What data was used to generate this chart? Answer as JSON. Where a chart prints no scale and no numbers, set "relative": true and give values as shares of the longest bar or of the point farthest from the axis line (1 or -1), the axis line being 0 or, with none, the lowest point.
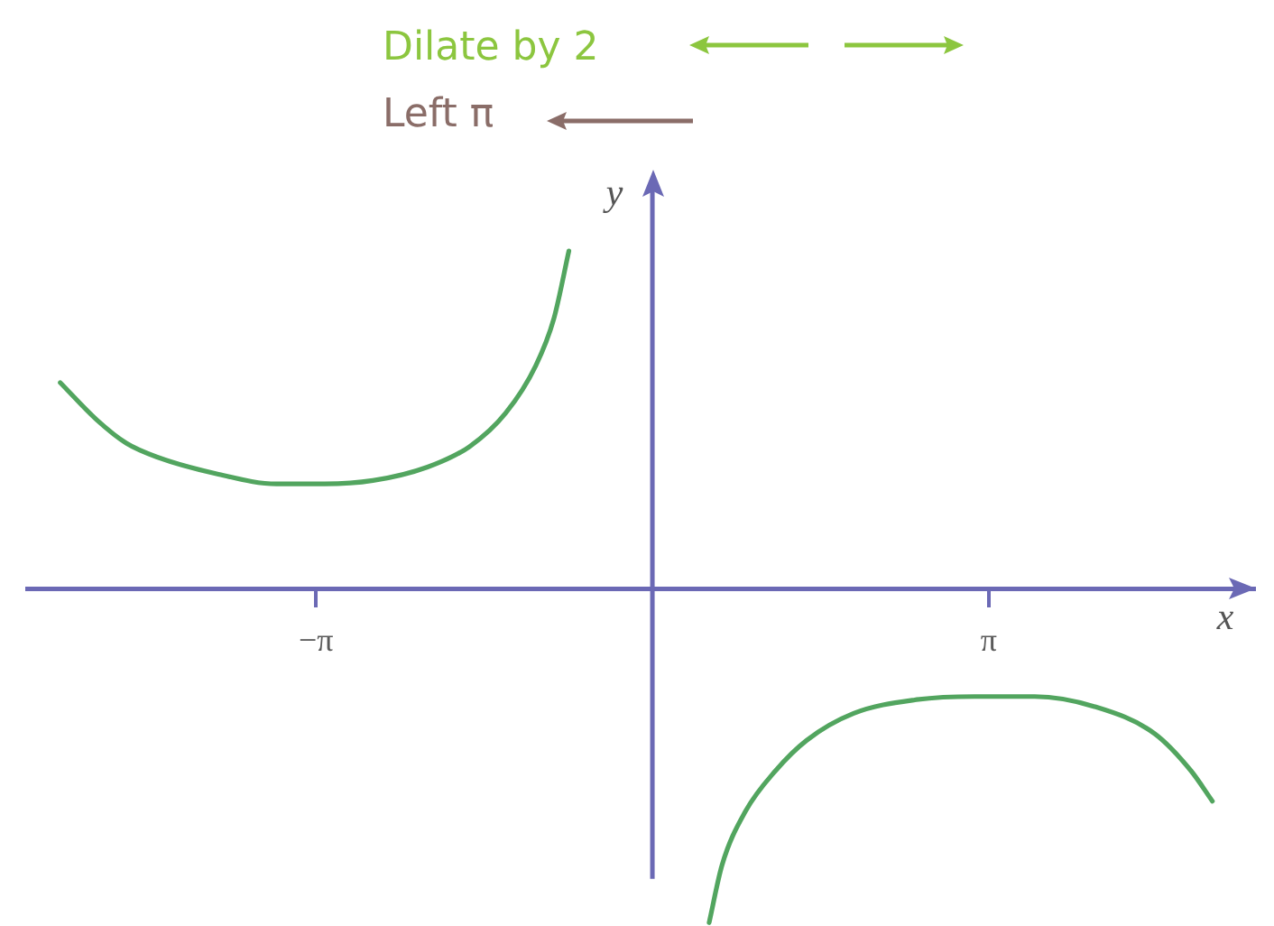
{
  "chart_data": {
    "type": "line",
    "relative": true,
    "annotations": [
      "Dilate by 2",
      "Left π"
    ],
    "xlabel": "x",
    "ylabel": "y",
    "xlim": [
      -5.84,
      5.62
    ],
    "xticks": [
      {
        "value": -3.1416,
        "label": "−π"
      },
      {
        "value": 3.1416,
        "label": "π"
      }
    ],
    "tick_labels": "x",
    "grid": false,
    "legend": false,
    "marker": "none",
    "line_style": "solid",
    "ref_lines": [
      {
        "axis": "x",
        "value": 0,
        "color": "#6b69b5"
      }
    ],
    "series": [
      {
        "color": "#52a55f",
        "x": [
          -5.53,
          -5.19,
          -4.91,
          -4.63,
          -4.07,
          -3.51,
          -3.06,
          -2.61,
          -2.1,
          -1.71,
          -1.37,
          -1.09,
          -0.92,
          -0.78
        ],
        "values": [
          0.61,
          0.5,
          0.43,
          0.39,
          0.34,
          0.31,
          0.31,
          0.32,
          0.36,
          0.42,
          0.52,
          0.66,
          0.8,
          1.0
        ]
      },
      {
        "color": "#52a55f",
        "x": [
          0.53,
          0.65,
          0.87,
          1.15,
          1.44,
          1.88,
          2.45,
          3.01,
          3.57,
          4.13,
          4.69,
          5.03,
          5.23
        ],
        "values": [
          -0.99,
          -0.82,
          -0.66,
          -0.54,
          -0.45,
          -0.37,
          -0.33,
          -0.32,
          -0.32,
          -0.35,
          -0.43,
          -0.54,
          -0.63
        ]
      }
    ]
  }
}
